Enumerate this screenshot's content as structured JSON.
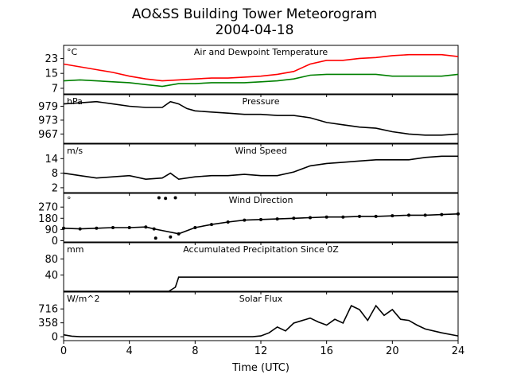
{
  "title": "AO&SS Building Tower Meteorogram",
  "subtitle": "2004-04-18",
  "x_axis": {
    "label": "Time (UTC)",
    "range": [
      0,
      24
    ],
    "ticks": [
      0,
      4,
      8,
      12,
      16,
      20,
      24
    ]
  },
  "chart_data": [
    {
      "type": "line",
      "title": "Air and Dewpoint Temperature",
      "unit": "°C",
      "ylim": [
        4,
        30
      ],
      "yticks": [
        7,
        15,
        23
      ],
      "series": [
        {
          "color": "#ff0000",
          "points": [
            [
              0,
              20
            ],
            [
              1,
              18.5
            ],
            [
              2,
              17
            ],
            [
              3,
              15.5
            ],
            [
              4,
              13.5
            ],
            [
              5,
              12
            ],
            [
              6,
              11
            ],
            [
              7,
              11.5
            ],
            [
              8,
              12
            ],
            [
              9,
              12.5
            ],
            [
              10,
              12.5
            ],
            [
              11,
              13
            ],
            [
              12,
              13.5
            ],
            [
              13,
              14.5
            ],
            [
              14,
              16
            ],
            [
              15,
              20
            ],
            [
              16,
              22
            ],
            [
              17,
              22
            ],
            [
              18,
              23
            ],
            [
              19,
              23.5
            ],
            [
              20,
              24.5
            ],
            [
              21,
              25
            ],
            [
              22,
              25
            ],
            [
              23,
              25
            ],
            [
              24,
              24
            ]
          ]
        },
        {
          "color": "#008000",
          "points": [
            [
              0,
              11
            ],
            [
              1,
              11.5
            ],
            [
              2,
              11
            ],
            [
              3,
              10.5
            ],
            [
              4,
              10
            ],
            [
              5,
              9
            ],
            [
              6,
              8
            ],
            [
              7,
              9.5
            ],
            [
              8,
              9.5
            ],
            [
              9,
              10
            ],
            [
              10,
              10
            ],
            [
              11,
              10
            ],
            [
              12,
              10.5
            ],
            [
              13,
              11
            ],
            [
              14,
              12
            ],
            [
              15,
              14
            ],
            [
              16,
              14.5
            ],
            [
              17,
              14.5
            ],
            [
              18,
              14.5
            ],
            [
              19,
              14.5
            ],
            [
              20,
              13.5
            ],
            [
              21,
              13.5
            ],
            [
              22,
              13.5
            ],
            [
              23,
              13.5
            ],
            [
              24,
              14.5
            ]
          ]
        }
      ]
    },
    {
      "type": "line",
      "title": "Pressure",
      "unit": "hPa",
      "ylim": [
        963,
        984
      ],
      "yticks": [
        967,
        973,
        979
      ],
      "series": [
        {
          "color": "#000000",
          "points": [
            [
              0,
              980
            ],
            [
              1,
              980.5
            ],
            [
              2,
              981
            ],
            [
              3,
              980
            ],
            [
              4,
              979
            ],
            [
              5,
              978.5
            ],
            [
              6,
              978.5
            ],
            [
              6.5,
              981
            ],
            [
              7,
              980
            ],
            [
              7.5,
              978
            ],
            [
              8,
              977
            ],
            [
              9,
              976.5
            ],
            [
              10,
              976
            ],
            [
              11,
              975.5
            ],
            [
              12,
              975.5
            ],
            [
              13,
              975
            ],
            [
              14,
              975
            ],
            [
              15,
              974
            ],
            [
              16,
              972
            ],
            [
              17,
              971
            ],
            [
              18,
              970
            ],
            [
              19,
              969.5
            ],
            [
              20,
              968
            ],
            [
              21,
              967
            ],
            [
              22,
              966.5
            ],
            [
              23,
              966.5
            ],
            [
              24,
              967
            ]
          ]
        }
      ]
    },
    {
      "type": "line",
      "title": "Wind Speed",
      "unit": "m/s",
      "ylim": [
        0,
        20
      ],
      "yticks": [
        2,
        8,
        14
      ],
      "series": [
        {
          "color": "#000000",
          "points": [
            [
              0,
              8
            ],
            [
              1,
              7
            ],
            [
              2,
              6
            ],
            [
              3,
              6.5
            ],
            [
              4,
              7
            ],
            [
              5,
              5.5
            ],
            [
              6,
              6
            ],
            [
              6.5,
              8
            ],
            [
              7,
              5.5
            ],
            [
              8,
              6.5
            ],
            [
              9,
              7
            ],
            [
              10,
              7
            ],
            [
              11,
              7.5
            ],
            [
              12,
              7
            ],
            [
              13,
              7
            ],
            [
              14,
              8.5
            ],
            [
              15,
              11
            ],
            [
              16,
              12
            ],
            [
              17,
              12.5
            ],
            [
              18,
              13
            ],
            [
              19,
              13.5
            ],
            [
              20,
              13.5
            ],
            [
              21,
              13.5
            ],
            [
              22,
              14.5
            ],
            [
              23,
              15
            ],
            [
              24,
              15
            ]
          ]
        }
      ]
    },
    {
      "type": "scatter",
      "title": "Wind Direction",
      "unit": "°",
      "ylim": [
        -10,
        380
      ],
      "yticks": [
        0,
        90,
        180,
        270
      ],
      "series": [
        {
          "color": "#000000",
          "points": [
            [
              0,
              100
            ],
            [
              1,
              95
            ],
            [
              2,
              100
            ],
            [
              3,
              105
            ],
            [
              4,
              105
            ],
            [
              5,
              110
            ],
            [
              5.5,
              95
            ],
            [
              5.6,
              20
            ],
            [
              5.8,
              345
            ],
            [
              6.2,
              340
            ],
            [
              6.5,
              30
            ],
            [
              6.8,
              345
            ],
            [
              7,
              55
            ],
            [
              8,
              105
            ],
            [
              9,
              130
            ],
            [
              10,
              150
            ],
            [
              11,
              165
            ],
            [
              12,
              170
            ],
            [
              13,
              175
            ],
            [
              14,
              180
            ],
            [
              15,
              185
            ],
            [
              16,
              190
            ],
            [
              17,
              190
            ],
            [
              18,
              195
            ],
            [
              19,
              195
            ],
            [
              20,
              200
            ],
            [
              21,
              205
            ],
            [
              22,
              205
            ],
            [
              23,
              210
            ],
            [
              24,
              215
            ]
          ]
        }
      ]
    },
    {
      "type": "line",
      "title": "Accumulated Precipitation Since 0Z",
      "unit": "mm",
      "ylim": [
        0,
        120
      ],
      "yticks": [
        40,
        80
      ],
      "series": [
        {
          "color": "#000000",
          "points": [
            [
              0,
              0
            ],
            [
              6.4,
              0
            ],
            [
              6.8,
              10
            ],
            [
              7.0,
              35
            ],
            [
              24,
              35
            ]
          ]
        }
      ]
    },
    {
      "type": "line",
      "title": "Solar Flux",
      "unit": "W/m^2",
      "ylim": [
        -100,
        1150
      ],
      "yticks": [
        0,
        358,
        716
      ],
      "series": [
        {
          "color": "#000000",
          "points": [
            [
              0,
              50
            ],
            [
              0.5,
              15
            ],
            [
              1,
              0
            ],
            [
              6,
              0
            ],
            [
              11.5,
              0
            ],
            [
              12,
              20
            ],
            [
              12.5,
              100
            ],
            [
              13,
              250
            ],
            [
              13.5,
              150
            ],
            [
              14,
              350
            ],
            [
              15,
              480
            ],
            [
              15.5,
              380
            ],
            [
              16,
              300
            ],
            [
              16.5,
              450
            ],
            [
              17,
              350
            ],
            [
              17.5,
              800
            ],
            [
              18,
              700
            ],
            [
              18.5,
              420
            ],
            [
              19,
              800
            ],
            [
              19.5,
              550
            ],
            [
              20,
              700
            ],
            [
              20.5,
              450
            ],
            [
              21,
              420
            ],
            [
              21.5,
              300
            ],
            [
              22,
              200
            ],
            [
              23,
              100
            ],
            [
              24,
              20
            ]
          ]
        }
      ]
    }
  ]
}
